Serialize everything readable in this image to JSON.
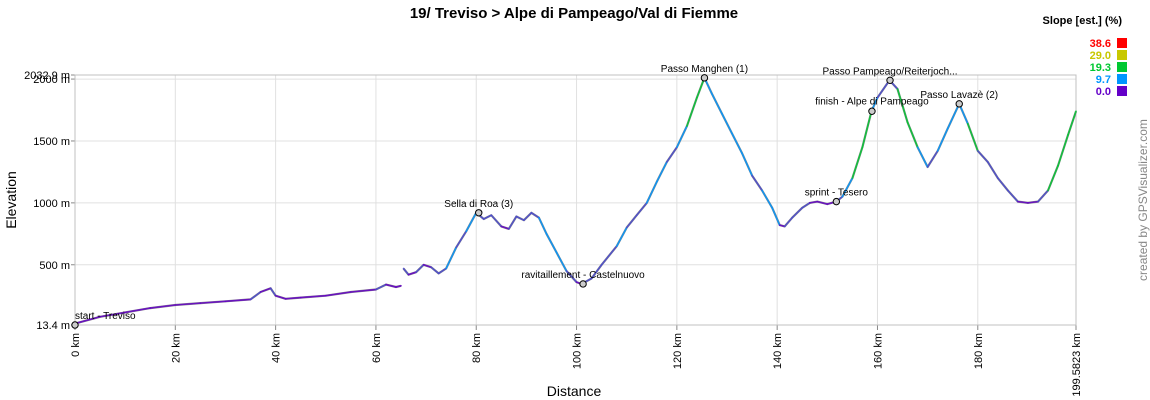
{
  "chart_data": {
    "type": "line",
    "title": "19/ Treviso > Alpe di Pampeago/Val di Fiemme",
    "xlabel": "Distance",
    "ylabel": "Elevation",
    "xlim": [
      0,
      199.5823
    ],
    "ylim": [
      13.4,
      2032.9
    ],
    "x_ticks": [
      {
        "v": 0,
        "label": "0 km"
      },
      {
        "v": 20,
        "label": "20 km"
      },
      {
        "v": 40,
        "label": "40 km"
      },
      {
        "v": 60,
        "label": "60 km"
      },
      {
        "v": 80,
        "label": "80 km"
      },
      {
        "v": 100,
        "label": "100 km"
      },
      {
        "v": 120,
        "label": "120 km"
      },
      {
        "v": 140,
        "label": "140 km"
      },
      {
        "v": 160,
        "label": "160 km"
      },
      {
        "v": 180,
        "label": "180 km"
      },
      {
        "v": 199.5823,
        "label": "199.5823 km"
      }
    ],
    "y_ticks": [
      {
        "v": 13.4,
        "label": "13.4 m"
      },
      {
        "v": 500,
        "label": "500 m"
      },
      {
        "v": 1000,
        "label": "1000 m"
      },
      {
        "v": 1500,
        "label": "1500 m"
      },
      {
        "v": 2000,
        "label": "2000 m"
      },
      {
        "v": 2032.9,
        "label": "2032.9 m"
      }
    ],
    "grid": true,
    "legend_position": "top-right",
    "legend": {
      "title": "Slope [est.] (%)",
      "items": [
        {
          "label": "38.6",
          "color": "#ff0000"
        },
        {
          "label": "29.0",
          "color": "#c8c800"
        },
        {
          "label": "19.3",
          "color": "#00c832"
        },
        {
          "label": "9.7",
          "color": "#0096ff"
        },
        {
          "label": "0.0",
          "color": "#6400c8"
        }
      ]
    },
    "credit": "created by GPSVisualizer.com",
    "series": [
      {
        "points": [
          [
            0,
            25
          ],
          [
            5,
            80
          ],
          [
            10,
            115
          ],
          [
            15,
            150
          ],
          [
            20,
            175
          ],
          [
            25,
            190
          ],
          [
            30,
            205
          ],
          [
            35,
            220
          ],
          [
            37,
            280
          ],
          [
            39,
            310
          ],
          [
            40,
            250
          ],
          [
            42,
            225
          ],
          [
            45,
            235
          ],
          [
            50,
            250
          ],
          [
            55,
            280
          ],
          [
            60,
            300
          ],
          [
            62,
            340
          ],
          [
            64,
            320
          ],
          [
            65,
            330
          ]
        ]
      },
      {
        "points": [
          [
            65.5,
            470
          ],
          [
            66.5,
            420
          ],
          [
            68,
            440
          ],
          [
            69.5,
            500
          ],
          [
            71,
            480
          ],
          [
            72.5,
            430
          ],
          [
            74,
            470
          ],
          [
            76,
            640
          ],
          [
            78,
            770
          ],
          [
            80,
            920
          ],
          [
            81.5,
            870
          ],
          [
            83,
            900
          ],
          [
            85,
            810
          ],
          [
            86.5,
            790
          ],
          [
            88,
            890
          ],
          [
            89.5,
            860
          ],
          [
            91,
            920
          ],
          [
            92.5,
            880
          ],
          [
            94,
            750
          ],
          [
            96,
            600
          ],
          [
            98,
            450
          ],
          [
            100,
            360
          ],
          [
            101,
            345
          ],
          [
            103,
            390
          ],
          [
            105,
            500
          ],
          [
            108,
            650
          ],
          [
            110,
            800
          ],
          [
            112,
            900
          ],
          [
            114,
            1000
          ],
          [
            116,
            1170
          ],
          [
            118,
            1330
          ],
          [
            120,
            1450
          ],
          [
            122,
            1620
          ],
          [
            124,
            1850
          ],
          [
            125.5,
            2010
          ],
          [
            127,
            1880
          ],
          [
            129,
            1720
          ],
          [
            131,
            1560
          ],
          [
            133,
            1400
          ],
          [
            135,
            1220
          ],
          [
            137,
            1100
          ],
          [
            139,
            960
          ],
          [
            140.5,
            820
          ],
          [
            141.5,
            810
          ],
          [
            143,
            880
          ],
          [
            145,
            960
          ],
          [
            146.5,
            1000
          ],
          [
            148,
            1010
          ],
          [
            150,
            990
          ],
          [
            151.8,
            1010
          ],
          [
            153,
            1050
          ],
          [
            155,
            1200
          ],
          [
            157,
            1450
          ],
          [
            158.8,
            1740
          ],
          [
            160,
            1850
          ],
          [
            162.4,
            1990
          ],
          [
            164,
            1920
          ],
          [
            166,
            1650
          ],
          [
            168,
            1450
          ],
          [
            170,
            1290
          ],
          [
            172,
            1420
          ],
          [
            174,
            1600
          ],
          [
            176.3,
            1800
          ],
          [
            178,
            1640
          ],
          [
            180,
            1420
          ],
          [
            182,
            1330
          ],
          [
            184,
            1200
          ],
          [
            186,
            1100
          ],
          [
            188,
            1010
          ],
          [
            190,
            1000
          ],
          [
            192,
            1010
          ],
          [
            194,
            1100
          ],
          [
            196,
            1300
          ],
          [
            198,
            1550
          ],
          [
            199.58,
            1740
          ]
        ]
      }
    ],
    "annotations": [
      {
        "label": "start - Treviso",
        "x": 0,
        "y": 13.4
      },
      {
        "label": "Sella di Roa (3)",
        "x": 80.5,
        "y": 920
      },
      {
        "label": "ravitaillement - Castelnuovo",
        "x": 101.3,
        "y": 345
      },
      {
        "label": "Passo Manghen (1)",
        "x": 125.5,
        "y": 2010
      },
      {
        "label": "sprint - Tesero",
        "x": 151.8,
        "y": 1010
      },
      {
        "label": "finish - Alpe di Pampeago",
        "x": 158.9,
        "y": 1740
      },
      {
        "label": "Passo Pampeago/Reiterjoch...",
        "x": 162.5,
        "y": 1990
      },
      {
        "label": "Passo Lavazè (2)",
        "x": 176.3,
        "y": 1800
      }
    ]
  }
}
